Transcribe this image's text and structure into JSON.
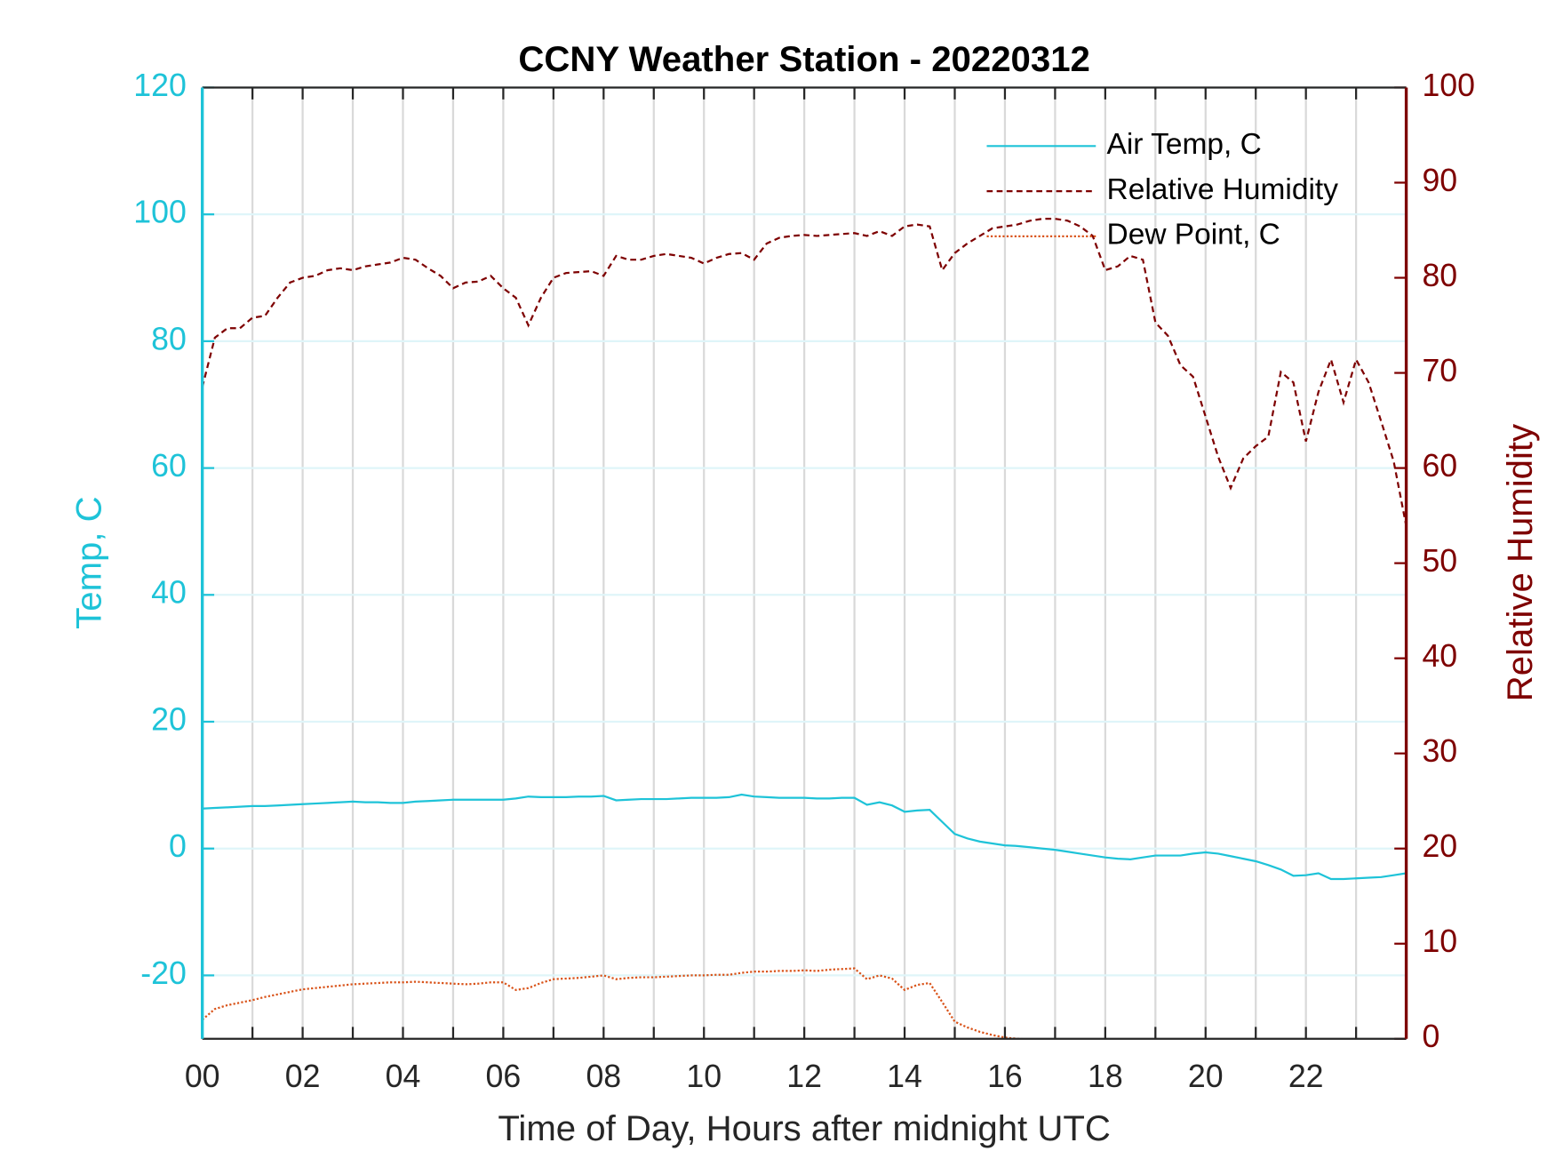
{
  "chart_data": {
    "type": "line",
    "title": "CCNY Weather Station - 20220312",
    "x_label": "Time of Day, Hours after midnight UTC",
    "y_label": "Temp, C",
    "y2_label": "Relative Humidity",
    "xlim": [
      0,
      24
    ],
    "xticks": [
      {
        "value": 0,
        "label": "00"
      },
      {
        "value": 2,
        "label": "02"
      },
      {
        "value": 4,
        "label": "04"
      },
      {
        "value": 6,
        "label": "06"
      },
      {
        "value": 8,
        "label": "08"
      },
      {
        "value": 10,
        "label": "10"
      },
      {
        "value": 12,
        "label": "12"
      },
      {
        "value": 14,
        "label": "14"
      },
      {
        "value": 16,
        "label": "16"
      },
      {
        "value": 18,
        "label": "18"
      },
      {
        "value": 20,
        "label": "20"
      },
      {
        "value": 22,
        "label": "22"
      }
    ],
    "xminorticks": [
      1,
      3,
      5,
      7,
      9,
      11,
      13,
      15,
      17,
      19,
      21,
      23
    ],
    "ylim": [
      -30,
      120
    ],
    "yticks": [
      -20,
      0,
      20,
      40,
      60,
      80,
      100,
      120
    ],
    "y2lim": [
      0,
      100
    ],
    "y2ticks": [
      0,
      10,
      20,
      30,
      40,
      50,
      60,
      70,
      80,
      90,
      100
    ],
    "y_color": "#1ec3d8",
    "y2_color": "#7e0000",
    "grid": true,
    "legend": "upper right",
    "x": [
      0,
      0.25,
      0.5,
      0.75,
      1,
      1.25,
      1.5,
      1.75,
      2,
      2.25,
      2.5,
      2.75,
      3,
      3.25,
      3.5,
      3.75,
      4,
      4.25,
      4.5,
      4.75,
      5,
      5.25,
      5.5,
      5.75,
      6,
      6.25,
      6.5,
      6.75,
      7,
      7.25,
      7.5,
      7.75,
      8,
      8.25,
      8.5,
      8.75,
      9,
      9.25,
      9.5,
      9.75,
      10,
      10.25,
      10.5,
      10.75,
      11,
      11.25,
      11.5,
      11.75,
      12,
      12.25,
      12.5,
      12.75,
      13,
      13.25,
      13.5,
      13.75,
      14,
      14.25,
      14.5,
      14.75,
      15,
      15.25,
      15.5,
      15.75,
      16,
      16.25,
      16.5,
      16.75,
      17,
      17.25,
      17.5,
      17.75,
      18,
      18.25,
      18.5,
      18.75,
      19,
      19.25,
      19.5,
      19.75,
      20,
      20.25,
      20.5,
      20.75,
      21,
      21.25,
      21.5,
      21.75,
      22,
      22.25,
      22.5,
      22.75,
      23,
      23.25,
      23.5,
      23.75,
      24
    ],
    "series": [
      {
        "name": "Air Temp, C",
        "color": "#1ec3d8",
        "dash": "solid",
        "axis": "y",
        "values": [
          6.3,
          6.4,
          6.5,
          6.6,
          6.7,
          6.7,
          6.8,
          6.9,
          7.0,
          7.1,
          7.2,
          7.3,
          7.4,
          7.3,
          7.3,
          7.2,
          7.2,
          7.4,
          7.5,
          7.6,
          7.7,
          7.7,
          7.7,
          7.7,
          7.7,
          7.9,
          8.2,
          8.1,
          8.1,
          8.1,
          8.2,
          8.2,
          8.3,
          7.6,
          7.7,
          7.8,
          7.8,
          7.8,
          7.9,
          8.0,
          8.0,
          8.0,
          8.1,
          8.5,
          8.2,
          8.1,
          8.0,
          8.0,
          8.0,
          7.9,
          7.9,
          8.0,
          8.0,
          6.9,
          7.3,
          6.8,
          5.8,
          6.0,
          6.1,
          4.2,
          2.3,
          1.6,
          1.1,
          0.8,
          0.5,
          0.4,
          0.2,
          0.0,
          -0.2,
          -0.5,
          -0.8,
          -1.1,
          -1.4,
          -1.6,
          -1.7,
          -1.4,
          -1.1,
          -1.1,
          -1.1,
          -0.8,
          -0.6,
          -0.8,
          -1.2,
          -1.6,
          -2.0,
          -2.6,
          -3.3,
          -4.3,
          -4.2,
          -3.9,
          -4.8,
          -4.8,
          -4.7,
          -4.6,
          -4.5,
          -4.2,
          -3.9
        ]
      },
      {
        "name": "Relative Humidity",
        "color": "#7e0000",
        "dash": "dashed",
        "axis": "y2",
        "values": [
          68.5,
          73.7,
          74.7,
          74.7,
          75.8,
          76.0,
          77.9,
          79.5,
          80.0,
          80.2,
          80.8,
          81.0,
          80.8,
          81.2,
          81.4,
          81.6,
          82.1,
          81.9,
          81.0,
          80.2,
          78.9,
          79.5,
          79.6,
          80.2,
          78.9,
          77.9,
          75.0,
          77.9,
          80.0,
          80.5,
          80.6,
          80.7,
          80.2,
          82.3,
          81.9,
          81.9,
          82.3,
          82.5,
          82.3,
          82.1,
          81.5,
          82.1,
          82.5,
          82.6,
          81.9,
          83.6,
          84.2,
          84.4,
          84.5,
          84.4,
          84.5,
          84.6,
          84.7,
          84.4,
          84.9,
          84.4,
          85.4,
          85.6,
          85.4,
          80.8,
          82.6,
          83.6,
          84.4,
          85.2,
          85.4,
          85.6,
          86.0,
          86.2,
          86.2,
          86.0,
          85.4,
          84.4,
          80.8,
          81.2,
          82.3,
          81.9,
          75.3,
          73.9,
          70.8,
          69.6,
          65.4,
          61.2,
          57.9,
          61.0,
          62.3,
          63.3,
          70.1,
          69.0,
          62.8,
          68.0,
          71.4,
          66.9,
          71.4,
          69.0,
          64.9,
          60.7,
          53.9
        ]
      },
      {
        "name": "Dew Point, C",
        "color": "#d95319",
        "dash": "dotted",
        "axis": "y",
        "values": [
          -27.0,
          -25.3,
          -24.7,
          -24.3,
          -23.9,
          -23.4,
          -23.0,
          -22.6,
          -22.2,
          -22.0,
          -21.8,
          -21.6,
          -21.4,
          -21.3,
          -21.2,
          -21.1,
          -21.1,
          -21.0,
          -21.1,
          -21.2,
          -21.3,
          -21.4,
          -21.3,
          -21.1,
          -21.1,
          -22.3,
          -22.0,
          -21.2,
          -20.6,
          -20.5,
          -20.4,
          -20.2,
          -20.0,
          -20.6,
          -20.4,
          -20.3,
          -20.3,
          -20.2,
          -20.1,
          -20.0,
          -20.0,
          -19.9,
          -19.9,
          -19.6,
          -19.4,
          -19.4,
          -19.3,
          -19.3,
          -19.2,
          -19.3,
          -19.1,
          -19.0,
          -18.9,
          -20.6,
          -20.0,
          -20.5,
          -22.3,
          -21.5,
          -21.2,
          -24.2,
          -27.3,
          -28.2,
          -28.9,
          -29.4,
          -29.8,
          -30.0,
          -30.1,
          -30.3,
          null,
          null,
          null,
          null,
          null,
          null,
          null,
          null,
          null,
          null,
          null,
          null,
          null,
          null,
          null,
          null,
          null,
          null,
          null,
          null,
          null,
          null,
          null,
          null,
          null,
          null,
          null,
          null,
          null
        ]
      }
    ]
  }
}
